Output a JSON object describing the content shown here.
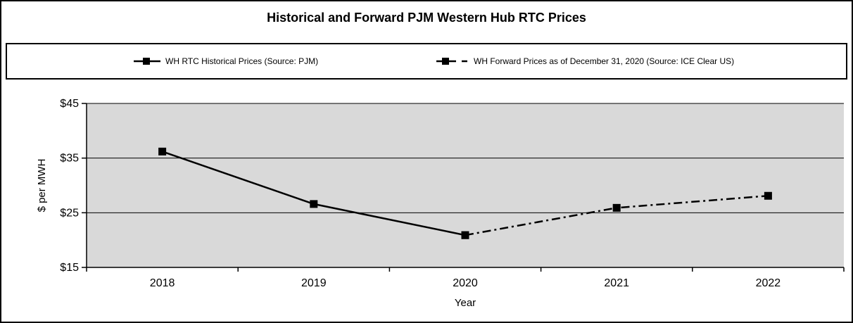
{
  "title": "Historical and Forward PJM Western Hub RTC Prices",
  "legend": {
    "items": [
      {
        "label": "WH RTC Historical Prices (Source: PJM)",
        "style": "solid"
      },
      {
        "label": "WH Forward Prices as of December 31, 2020 (Source: ICE Clear US)",
        "style": "dash-dot"
      }
    ]
  },
  "chart_data": {
    "type": "line",
    "categories": [
      "2018",
      "2019",
      "2020",
      "2021",
      "2022"
    ],
    "series": [
      {
        "name": "WH RTC Historical Prices (Source: PJM)",
        "values": [
          36.2,
          26.6,
          20.9,
          null,
          null
        ],
        "line": "solid",
        "marker": "square"
      },
      {
        "name": "WH Forward Prices as of December 31, 2020 (Source: ICE Clear US)",
        "values": [
          null,
          null,
          20.9,
          25.9,
          28.1
        ],
        "line": "dash-dot",
        "marker": "square"
      }
    ],
    "xlabel": "Year",
    "ylabel": "$ per MWH",
    "ylim": [
      15,
      45
    ],
    "yticks": [
      15,
      25,
      35,
      45
    ],
    "ytick_labels": [
      "$15",
      "$25",
      "$35",
      "$45"
    ],
    "grid": "horizontal",
    "legend_position": "top",
    "plot_bg_color": "#d9d9d9",
    "line_color": "#000000",
    "text_color": "#000000"
  }
}
